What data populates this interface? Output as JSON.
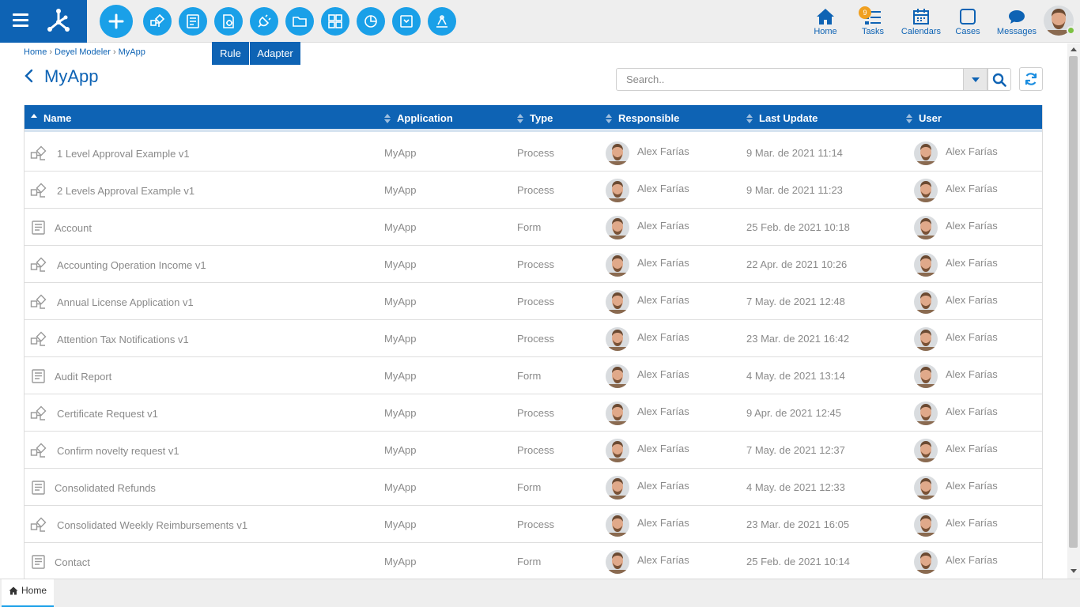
{
  "colors": {
    "brand": "#0e63b4",
    "accent": "#1aa0e8",
    "badge": "#f0a020",
    "online": "#7cc142"
  },
  "toolbar": {
    "buttons": [
      {
        "name": "add",
        "icon": "plus-icon"
      },
      {
        "name": "process",
        "icon": "process-icon"
      },
      {
        "name": "form",
        "icon": "form-icon"
      },
      {
        "name": "rule",
        "icon": "rule-icon"
      },
      {
        "name": "adapter",
        "icon": "adapter-icon"
      },
      {
        "name": "folder",
        "icon": "folder-icon"
      },
      {
        "name": "application",
        "icon": "grid-icon"
      },
      {
        "name": "indicator",
        "icon": "pie-chart-icon"
      },
      {
        "name": "entity",
        "icon": "archive-icon"
      },
      {
        "name": "integration",
        "icon": "integration-icon"
      }
    ],
    "tooltips": {
      "rule": "Rule",
      "adapter": "Adapter"
    }
  },
  "nav": {
    "home": "Home",
    "tasks": "Tasks",
    "tasks_badge": "9",
    "calendars": "Calendars",
    "cases": "Cases",
    "messages": "Messages"
  },
  "breadcrumb": {
    "home": "Home",
    "modeler": "Deyel Modeler",
    "current": "MyApp"
  },
  "page": {
    "title": "MyApp"
  },
  "search": {
    "placeholder": "Search.."
  },
  "table": {
    "columns": [
      "Name",
      "Application",
      "Type",
      "Responsible",
      "Last Update",
      "User"
    ],
    "rows": [
      {
        "name": "1 Level Approval Example v1",
        "application": "MyApp",
        "type": "Process",
        "responsible": "Alex Farías",
        "last_update": "9 Mar. de 2021 11:14",
        "user": "Alex Farías"
      },
      {
        "name": "2 Levels Approval Example v1",
        "application": "MyApp",
        "type": "Process",
        "responsible": "Alex Farías",
        "last_update": "9 Mar. de 2021 11:23",
        "user": "Alex Farías"
      },
      {
        "name": "Account",
        "application": "MyApp",
        "type": "Form",
        "responsible": "Alex Farías",
        "last_update": "25 Feb. de 2021 10:18",
        "user": "Alex Farías"
      },
      {
        "name": "Accounting Operation Income v1",
        "application": "MyApp",
        "type": "Process",
        "responsible": "Alex Farías",
        "last_update": "22 Apr. de 2021 10:26",
        "user": "Alex Farías"
      },
      {
        "name": "Annual License Application v1",
        "application": "MyApp",
        "type": "Process",
        "responsible": "Alex Farías",
        "last_update": "7 May. de 2021 12:48",
        "user": "Alex Farías"
      },
      {
        "name": "Attention Tax Notifications v1",
        "application": "MyApp",
        "type": "Process",
        "responsible": "Alex Farías",
        "last_update": "23 Mar. de 2021 16:42",
        "user": "Alex Farías"
      },
      {
        "name": "Audit Report",
        "application": "MyApp",
        "type": "Form",
        "responsible": "Alex Farías",
        "last_update": "4 May. de 2021 13:14",
        "user": "Alex Farías"
      },
      {
        "name": "Certificate Request v1",
        "application": "MyApp",
        "type": "Process",
        "responsible": "Alex Farías",
        "last_update": "9 Apr. de 2021 12:45",
        "user": "Alex Farías"
      },
      {
        "name": "Confirm novelty request v1",
        "application": "MyApp",
        "type": "Process",
        "responsible": "Alex Farías",
        "last_update": "7 May. de 2021 12:37",
        "user": "Alex Farías"
      },
      {
        "name": "Consolidated Refunds",
        "application": "MyApp",
        "type": "Form",
        "responsible": "Alex Farías",
        "last_update": "4 May. de 2021 12:33",
        "user": "Alex Farías"
      },
      {
        "name": "Consolidated Weekly Reimbursements v1",
        "application": "MyApp",
        "type": "Process",
        "responsible": "Alex Farías",
        "last_update": "23 Mar. de 2021 16:05",
        "user": "Alex Farías"
      },
      {
        "name": "Contact",
        "application": "MyApp",
        "type": "Form",
        "responsible": "Alex Farías",
        "last_update": "25 Feb. de 2021 10:14",
        "user": "Alex Farías"
      }
    ]
  },
  "bottom_tabs": {
    "home": "Home"
  }
}
